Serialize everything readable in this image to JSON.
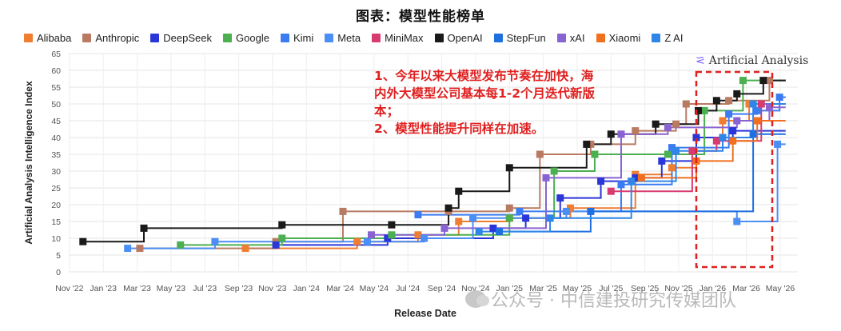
{
  "title": "图表：模型性能榜单",
  "brand": "Artificial Analysis",
  "annotation": {
    "line1": "1、今年以来大模型发布节奏在加快，海",
    "line2": "内外大模型公司基本每1-2个月迭代新版",
    "line3": "本；",
    "line4": "2、模型性能提升同样在加速。"
  },
  "watermark": "公众号 · 中信建投研究传媒团队",
  "chart_data": {
    "type": "line",
    "step": true,
    "xlabel": "Release Date",
    "ylabel": "Artificial Analysis Intelligence Index",
    "ylim": [
      0,
      65
    ],
    "yticks": [
      0,
      5,
      10,
      15,
      20,
      25,
      30,
      35,
      40,
      45,
      50,
      55,
      60,
      65
    ],
    "x_ticks": [
      "Nov '22",
      "Jan '23",
      "Mar '23",
      "May '23",
      "Jul '23",
      "Sep '23",
      "Nov '23",
      "Jan '24",
      "Mar '24",
      "May '24",
      "Jul '24",
      "Sep '24",
      "Nov '24",
      "Jan '25",
      "Mar '25",
      "May '25",
      "Jul '25",
      "Sep '25",
      "Nov '25",
      "Jan '26",
      "Mar '26",
      "May '26"
    ],
    "xlim": [
      2022.83,
      2026.42
    ],
    "grid": true,
    "legend_position": "top",
    "highlight_box_x": [
      2025.92,
      2026.42
    ],
    "series": [
      {
        "name": "Alibaba",
        "color": "#ef7d32",
        "points": [
          [
            2023.7,
            7
          ],
          [
            2024.25,
            9
          ],
          [
            2024.55,
            11
          ],
          [
            2024.75,
            15
          ],
          [
            2025.0,
            16
          ],
          [
            2025.3,
            19
          ],
          [
            2025.62,
            29
          ],
          [
            2025.8,
            31
          ],
          [
            2025.92,
            40
          ],
          [
            2026.05,
            45
          ],
          [
            2026.18,
            50
          ]
        ]
      },
      {
        "name": "Anthropic",
        "color": "#b97a62",
        "points": [
          [
            2023.18,
            7
          ],
          [
            2023.85,
            9
          ],
          [
            2024.18,
            18
          ],
          [
            2024.7,
            18
          ],
          [
            2025.0,
            19
          ],
          [
            2025.15,
            35
          ],
          [
            2025.4,
            38
          ],
          [
            2025.62,
            42
          ],
          [
            2025.82,
            44
          ],
          [
            2025.87,
            50
          ],
          [
            2026.08,
            51
          ],
          [
            2026.28,
            57
          ]
        ]
      },
      {
        "name": "DeepSeek",
        "color": "#2a36d8",
        "points": [
          [
            2023.85,
            8
          ],
          [
            2024.4,
            10
          ],
          [
            2024.92,
            13
          ],
          [
            2025.08,
            16
          ],
          [
            2025.25,
            22
          ],
          [
            2025.45,
            27
          ],
          [
            2025.62,
            28
          ],
          [
            2025.75,
            33
          ],
          [
            2025.92,
            40
          ],
          [
            2026.1,
            42
          ]
        ]
      },
      {
        "name": "Google",
        "color": "#4caf50",
        "points": [
          [
            2023.38,
            8
          ],
          [
            2023.88,
            10
          ],
          [
            2024.42,
            11
          ],
          [
            2025.0,
            16
          ],
          [
            2025.22,
            30
          ],
          [
            2025.42,
            35
          ],
          [
            2025.78,
            35
          ],
          [
            2025.96,
            48
          ],
          [
            2026.15,
            57
          ]
        ]
      },
      {
        "name": "Kimi",
        "color": "#3b7cf2",
        "points": [
          [
            2024.55,
            17
          ],
          [
            2025.05,
            18
          ],
          [
            2025.55,
            26
          ],
          [
            2025.8,
            37
          ],
          [
            2026.08,
            47
          ],
          [
            2026.22,
            48
          ],
          [
            2026.33,
            52
          ]
        ]
      },
      {
        "name": "Meta",
        "color": "#4b8ef5",
        "points": [
          [
            2023.12,
            7
          ],
          [
            2023.55,
            9
          ],
          [
            2024.3,
            9
          ],
          [
            2024.58,
            10
          ],
          [
            2024.82,
            16
          ],
          [
            2025.28,
            18
          ],
          [
            2026.12,
            15
          ],
          [
            2026.32,
            38
          ]
        ]
      },
      {
        "name": "MiniMax",
        "color": "#d83b6f",
        "points": [
          [
            2025.5,
            24
          ],
          [
            2025.9,
            36
          ],
          [
            2026.02,
            39
          ],
          [
            2026.24,
            50
          ]
        ]
      },
      {
        "name": "OpenAI",
        "color": "#1a1a1a",
        "points": [
          [
            2022.9,
            9
          ],
          [
            2023.2,
            13
          ],
          [
            2023.88,
            14
          ],
          [
            2024.42,
            14
          ],
          [
            2024.7,
            19
          ],
          [
            2024.75,
            24
          ],
          [
            2025.0,
            31
          ],
          [
            2025.38,
            38
          ],
          [
            2025.5,
            41
          ],
          [
            2025.72,
            44
          ],
          [
            2025.93,
            48
          ],
          [
            2026.02,
            51
          ],
          [
            2026.12,
            53
          ],
          [
            2026.25,
            57
          ]
        ]
      },
      {
        "name": "StepFun",
        "color": "#1e6fe0",
        "points": [
          [
            2024.95,
            12
          ],
          [
            2025.4,
            18
          ],
          [
            2026.2,
            41
          ]
        ]
      },
      {
        "name": "xAI",
        "color": "#8a63d2",
        "points": [
          [
            2024.32,
            11
          ],
          [
            2024.68,
            13
          ],
          [
            2025.18,
            28
          ],
          [
            2025.55,
            41
          ],
          [
            2025.78,
            43
          ],
          [
            2026.12,
            45
          ],
          [
            2026.28,
            49
          ]
        ]
      },
      {
        "name": "Xiaomi",
        "color": "#f07020",
        "points": [
          [
            2025.65,
            28
          ],
          [
            2025.92,
            33
          ],
          [
            2026.1,
            39
          ],
          [
            2026.22,
            45
          ]
        ]
      },
      {
        "name": "Z AI",
        "color": "#2f86e8",
        "points": [
          [
            2024.85,
            12
          ],
          [
            2025.2,
            16
          ],
          [
            2025.6,
            27
          ],
          [
            2025.82,
            36
          ],
          [
            2026.05,
            40
          ],
          [
            2026.2,
            50
          ]
        ]
      }
    ]
  }
}
